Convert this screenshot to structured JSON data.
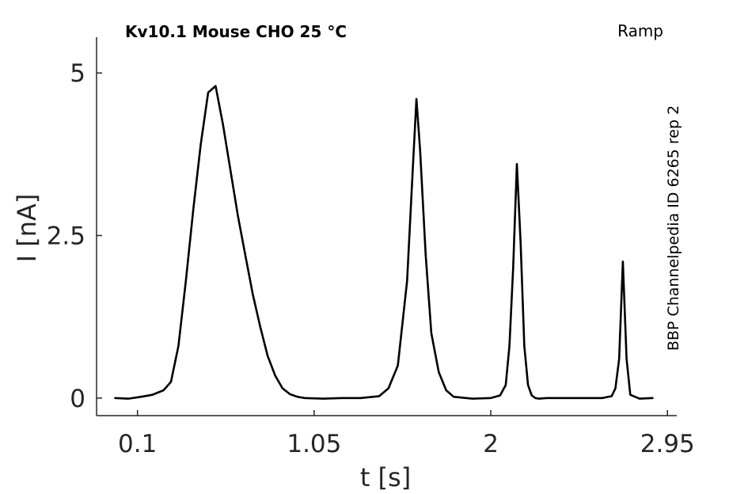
{
  "chart_data": {
    "type": "line",
    "title": "Kv10.1  Mouse  CHO  25 °C",
    "protocol_label": "Ramp",
    "side_label": "BBP Channelpedia ID 6265 rep 2",
    "xlabel": "t [s]",
    "ylabel": "I [nA]",
    "xlim": [
      -0.12,
      3.0
    ],
    "ylim": [
      -0.27,
      5.55
    ],
    "xticks": [
      0.1,
      1.05,
      2,
      2.95
    ],
    "xtick_labels": [
      "0.1",
      "1.05",
      "2",
      "2.95"
    ],
    "yticks": [
      0,
      2.5,
      5
    ],
    "ytick_labels": [
      "0",
      "2.5",
      "5"
    ],
    "grid": false,
    "legend": "none",
    "line_color": "#000000",
    "series": [
      {
        "x": [
          -0.02,
          0.05,
          0.12,
          0.18,
          0.24,
          0.28,
          0.32,
          0.36,
          0.4,
          0.44,
          0.48,
          0.52,
          0.56,
          0.6,
          0.62,
          0.64,
          0.68,
          0.72,
          0.76,
          0.8,
          0.84,
          0.88,
          0.92,
          0.96,
          1.0,
          1.1,
          1.2,
          1.3,
          1.4,
          1.45,
          1.5,
          1.55,
          1.58,
          1.6,
          1.62,
          1.65,
          1.68,
          1.72,
          1.76,
          1.8,
          1.9,
          2.0,
          2.05,
          2.08,
          2.1,
          2.12,
          2.14,
          2.16,
          2.18,
          2.2,
          2.22,
          2.24,
          2.26,
          2.3,
          2.4,
          2.5,
          2.6,
          2.65,
          2.67,
          2.69,
          2.71,
          2.73,
          2.75,
          2.8,
          2.87
        ],
        "y": [
          0.0,
          -0.01,
          0.02,
          0.05,
          0.12,
          0.25,
          0.8,
          1.8,
          2.9,
          3.9,
          4.7,
          4.8,
          4.2,
          3.5,
          3.15,
          2.8,
          2.2,
          1.6,
          1.1,
          0.65,
          0.35,
          0.15,
          0.06,
          0.02,
          0.0,
          -0.01,
          0.0,
          0.0,
          0.03,
          0.15,
          0.5,
          1.8,
          3.5,
          4.6,
          3.8,
          2.2,
          1.0,
          0.4,
          0.12,
          0.02,
          -0.01,
          0.0,
          0.04,
          0.2,
          0.8,
          2.0,
          3.6,
          2.4,
          0.8,
          0.2,
          0.04,
          0.0,
          -0.01,
          0.0,
          0.0,
          0.0,
          0.0,
          0.03,
          0.15,
          0.6,
          2.1,
          0.6,
          0.05,
          -0.01,
          0.0
        ]
      }
    ]
  }
}
